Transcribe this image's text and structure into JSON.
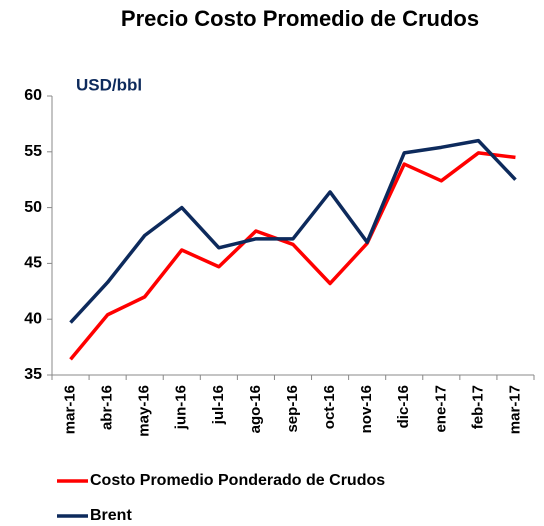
{
  "chart_data": {
    "type": "line",
    "title": "Precio Costo Promedio de Crudos",
    "ylabel": "USD/bbl",
    "categories": [
      "mar-16",
      "abr-16",
      "may-16",
      "jun-16",
      "jul-16",
      "ago-16",
      "sep-16",
      "oct-16",
      "nov-16",
      "dic-16",
      "ene-17",
      "feb-17",
      "mar-17"
    ],
    "series": [
      {
        "name": "Costo Promedio Ponderado de Crudos",
        "color": "#ff0000",
        "values": [
          36.4,
          40.4,
          42.0,
          46.2,
          44.7,
          47.9,
          46.7,
          43.2,
          46.8,
          53.9,
          52.4,
          54.9,
          54.5
        ]
      },
      {
        "name": "Brent",
        "color": "#0d2a5c",
        "values": [
          39.7,
          43.3,
          47.5,
          50.0,
          46.4,
          47.2,
          47.2,
          51.4,
          46.9,
          54.9,
          55.4,
          56.0,
          52.5
        ]
      }
    ],
    "ylim": [
      35,
      60
    ],
    "yticks": [
      35,
      40,
      45,
      50,
      55,
      60
    ],
    "grid": false
  }
}
